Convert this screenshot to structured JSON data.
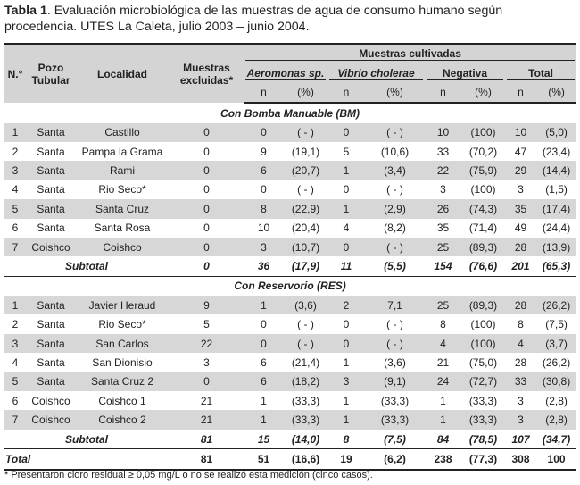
{
  "caption": {
    "label": "Tabla 1",
    "text": ". Evaluación microbiológica de las muestras de agua de consumo humano según procedencia. UTES La Caleta, julio 2003 – junio 2004."
  },
  "headers": {
    "no": "N.°",
    "pozo": "Pozo Tubular",
    "localidad": "Localidad",
    "excluidas": "Muestras excluidas*",
    "cultivadas": "Muestras cultivadas",
    "groups": [
      "Aeromonas sp.",
      "Vibrio cholerae",
      "Negativa",
      "Total"
    ],
    "n": "n",
    "pct": "(%)"
  },
  "sections": [
    {
      "title": "Con Bomba Manuable (BM)",
      "rows": [
        {
          "no": "1",
          "pozo": "Santa",
          "loc": "Castillo",
          "exc": "0",
          "a_n": "0",
          "a_p": "( - )",
          "v_n": "0",
          "v_p": "( - )",
          "neg_n": "10",
          "neg_p": "(100)",
          "t_n": "10",
          "t_p": "(5,0)"
        },
        {
          "no": "2",
          "pozo": "Santa",
          "loc": "Pampa la Grama",
          "exc": "0",
          "a_n": "9",
          "a_p": "(19,1)",
          "v_n": "5",
          "v_p": "(10,6)",
          "neg_n": "33",
          "neg_p": "(70,2)",
          "t_n": "47",
          "t_p": "(23,4)"
        },
        {
          "no": "3",
          "pozo": "Santa",
          "loc": "Rami",
          "exc": "0",
          "a_n": "6",
          "a_p": "(20,7)",
          "v_n": "1",
          "v_p": "(3,4)",
          "neg_n": "22",
          "neg_p": "(75,9)",
          "t_n": "29",
          "t_p": "(14,4)"
        },
        {
          "no": "4",
          "pozo": "Santa",
          "loc": "Rio Seco*",
          "exc": "0",
          "a_n": "0",
          "a_p": "( - )",
          "v_n": "0",
          "v_p": "( - )",
          "neg_n": "3",
          "neg_p": "(100)",
          "t_n": "3",
          "t_p": "(1,5)"
        },
        {
          "no": "5",
          "pozo": "Santa",
          "loc": "Santa Cruz",
          "exc": "0",
          "a_n": "8",
          "a_p": "(22,9)",
          "v_n": "1",
          "v_p": "(2,9)",
          "neg_n": "26",
          "neg_p": "(74,3)",
          "t_n": "35",
          "t_p": "(17,4)"
        },
        {
          "no": "6",
          "pozo": "Santa",
          "loc": "Santa Rosa",
          "exc": "0",
          "a_n": "10",
          "a_p": "(20,4)",
          "v_n": "4",
          "v_p": "(8,2)",
          "neg_n": "35",
          "neg_p": "(71,4)",
          "t_n": "49",
          "t_p": "(24,4)"
        },
        {
          "no": "7",
          "pozo": "Coishco",
          "loc": "Coishco",
          "exc": "0",
          "a_n": "3",
          "a_p": "(10,7)",
          "v_n": "0",
          "v_p": "( - )",
          "neg_n": "25",
          "neg_p": "(89,3)",
          "t_n": "28",
          "t_p": "(13,9)"
        }
      ],
      "subtotal": {
        "label": "Subtotal",
        "exc": "0",
        "a_n": "36",
        "a_p": "(17,9)",
        "v_n": "11",
        "v_p": "(5,5)",
        "neg_n": "154",
        "neg_p": "(76,6)",
        "t_n": "201",
        "t_p": "(65,3)"
      }
    },
    {
      "title": "Con Reservorio (RES)",
      "rows": [
        {
          "no": "1",
          "pozo": "Santa",
          "loc": "Javier Heraud",
          "exc": "9",
          "a_n": "1",
          "a_p": "(3,6)",
          "v_n": "2",
          "v_p": "7,1",
          "neg_n": "25",
          "neg_p": "(89,3)",
          "t_n": "28",
          "t_p": "(26,2)"
        },
        {
          "no": "2",
          "pozo": "Santa",
          "loc": "Rio Seco*",
          "exc": "5",
          "a_n": "0",
          "a_p": "( - )",
          "v_n": "0",
          "v_p": "( - )",
          "neg_n": "8",
          "neg_p": "(100)",
          "t_n": "8",
          "t_p": "(7,5)"
        },
        {
          "no": "3",
          "pozo": "Santa",
          "loc": "San Carlos",
          "exc": "22",
          "a_n": "0",
          "a_p": "( - )",
          "v_n": "0",
          "v_p": "( - )",
          "neg_n": "4",
          "neg_p": "(100)",
          "t_n": "4",
          "t_p": "(3,7)"
        },
        {
          "no": "4",
          "pozo": "Santa",
          "loc": "San Dionisio",
          "exc": "3",
          "a_n": "6",
          "a_p": "(21,4)",
          "v_n": "1",
          "v_p": "(3,6)",
          "neg_n": "21",
          "neg_p": "(75,0)",
          "t_n": "28",
          "t_p": "(26,2)"
        },
        {
          "no": "5",
          "pozo": "Santa",
          "loc": "Santa Cruz 2",
          "exc": "0",
          "a_n": "6",
          "a_p": "(18,2)",
          "v_n": "3",
          "v_p": "(9,1)",
          "neg_n": "24",
          "neg_p": "(72,7)",
          "t_n": "33",
          "t_p": "(30,8)"
        },
        {
          "no": "6",
          "pozo": "Coishco",
          "loc": "Coishco 1",
          "exc": "21",
          "a_n": "1",
          "a_p": "(33,3)",
          "v_n": "1",
          "v_p": "(33,3)",
          "neg_n": "1",
          "neg_p": "(33,3)",
          "t_n": "3",
          "t_p": "(2,8)"
        },
        {
          "no": "7",
          "pozo": "Coishco",
          "loc": "Coishco 2",
          "exc": "21",
          "a_n": "1",
          "a_p": "(33,3)",
          "v_n": "1",
          "v_p": "(33,3)",
          "neg_n": "1",
          "neg_p": "(33,3)",
          "t_n": "3",
          "t_p": "(2,8)"
        }
      ],
      "subtotal": {
        "label": "Subtotal",
        "exc": "81",
        "a_n": "15",
        "a_p": "(14,0)",
        "v_n": "8",
        "v_p": "(7,5)",
        "neg_n": "84",
        "neg_p": "(78,5)",
        "t_n": "107",
        "t_p": "(34,7)"
      }
    }
  ],
  "total": {
    "label": "Total",
    "exc": "81",
    "a_n": "51",
    "a_p": "(16,6)",
    "v_n": "19",
    "v_p": "(6,2)",
    "neg_n": "238",
    "neg_p": "(77,3)",
    "t_n": "308",
    "t_p": "100"
  },
  "footnote": "* Presentaron cloro residual ≥ 0,05 mg/L o no se realizó esta medición (cinco casos).",
  "colors": {
    "header_bg": "#d4d4d4",
    "row_shade": "#d7d7d7",
    "text": "#222222"
  }
}
